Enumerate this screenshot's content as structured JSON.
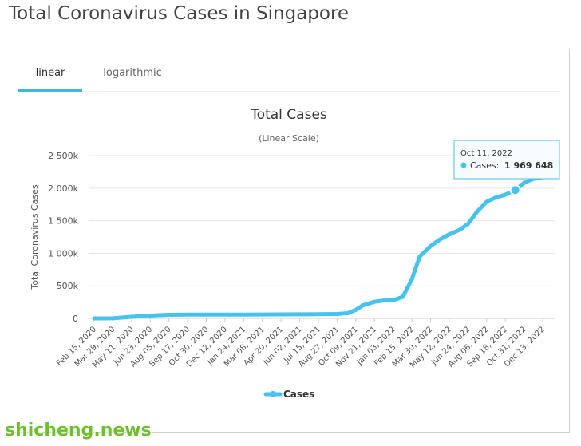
{
  "page": {
    "title": "Total Coronavirus Cases in Singapore"
  },
  "tabs": [
    {
      "label": "linear",
      "active": true
    },
    {
      "label": "logarithmic",
      "active": false
    }
  ],
  "tooltip": {
    "date": "Oct 11, 2022",
    "series": "Cases",
    "value": "1 969 648"
  },
  "watermark": "shicheng.news",
  "colors": {
    "series": "#45c2ee",
    "grid": "#e6e6e6",
    "tab_accent": "#3fb6de",
    "watermark": "#6fbf2a"
  },
  "chart_data": {
    "type": "line",
    "title": "Total Cases",
    "subtitle": "(Linear Scale)",
    "ylabel": "Total Coronavirus Cases",
    "xlabel": "",
    "ylim": [
      0,
      2500000
    ],
    "y_ticks": [
      "0",
      "500k",
      "1 000k",
      "1 500k",
      "2 000k",
      "2 500k"
    ],
    "y_tick_values": [
      0,
      500000,
      1000000,
      1500000,
      2000000,
      2500000
    ],
    "grid": true,
    "legend": {
      "position": "bottom-center",
      "entries": [
        "Cases"
      ]
    },
    "x_ticks": [
      "Feb 15, 2020",
      "Mar 29, 2020",
      "May 11, 2020",
      "Jun 23, 2020",
      "Aug 05, 2020",
      "Sep 17, 2020",
      "Oct 30, 2020",
      "Dec 12, 2020",
      "Jan 24, 2021",
      "Mar 08, 2021",
      "Apr 20, 2021",
      "Jun 02, 2021",
      "Jul 15, 2021",
      "Aug 27, 2021",
      "Oct 09, 2021",
      "Nov 21, 2021",
      "Jan 03, 2022",
      "Feb 15, 2022",
      "Mar 30, 2022",
      "May 12, 2022",
      "Jun 24, 2022",
      "Aug 06, 2022",
      "Sep 18, 2022",
      "Oct 31, 2022",
      "Dec 13, 2022"
    ],
    "series": [
      {
        "name": "Cases",
        "x": [
          "2020-02-15",
          "2020-03-29",
          "2020-05-11",
          "2020-06-23",
          "2020-08-05",
          "2020-09-17",
          "2020-10-30",
          "2020-12-12",
          "2021-01-24",
          "2021-03-08",
          "2021-04-20",
          "2021-06-02",
          "2021-07-15",
          "2021-08-27",
          "2021-09-20",
          "2021-10-09",
          "2021-10-25",
          "2021-11-21",
          "2021-12-10",
          "2022-01-03",
          "2022-01-25",
          "2022-02-15",
          "2022-03-05",
          "2022-03-30",
          "2022-04-20",
          "2022-05-12",
          "2022-06-05",
          "2022-06-24",
          "2022-07-15",
          "2022-08-06",
          "2022-08-25",
          "2022-09-18",
          "2022-10-11",
          "2022-10-31",
          "2022-11-20",
          "2022-12-13",
          "2023-01-05"
        ],
        "values": [
          50,
          1000,
          25000,
          43000,
          55000,
          57500,
          58000,
          58400,
          59000,
          60000,
          61000,
          62000,
          63500,
          67000,
          80000,
          130000,
          200000,
          255000,
          272000,
          280000,
          330000,
          600000,
          950000,
          1110000,
          1210000,
          1290000,
          1360000,
          1450000,
          1640000,
          1790000,
          1850000,
          1900000,
          1969648,
          2080000,
          2140000,
          2170000,
          2190000
        ]
      }
    ]
  }
}
